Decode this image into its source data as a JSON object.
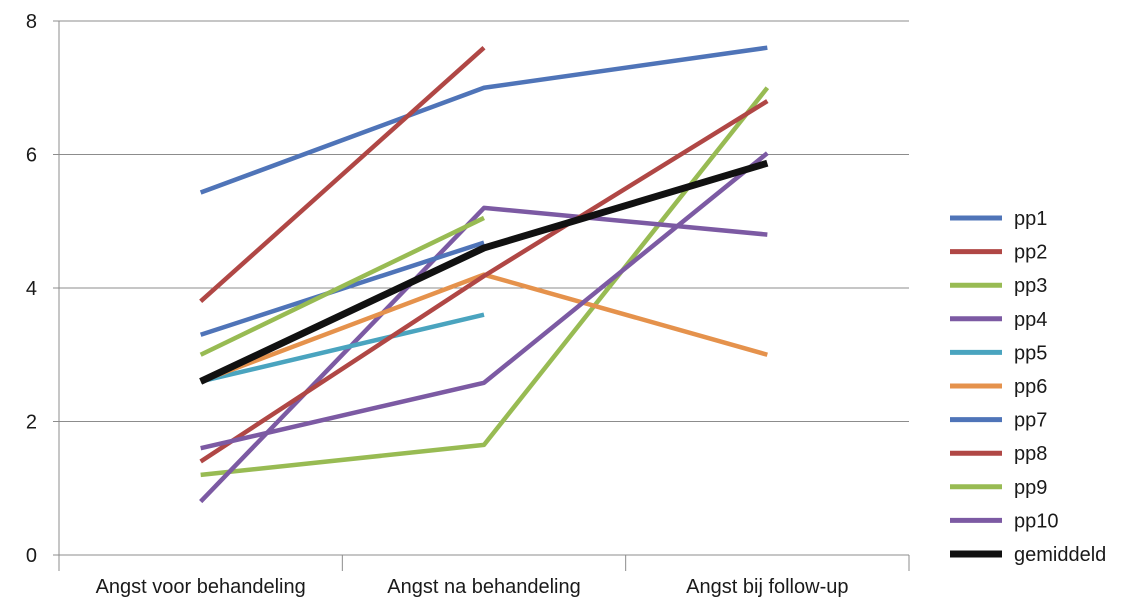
{
  "chart_data": {
    "type": "line",
    "categories": [
      "Angst voor behandeling",
      "Angst na behandeling",
      "Angst bij follow-up"
    ],
    "ylim": [
      0,
      8
    ],
    "yticks": [
      0,
      2,
      4,
      6,
      8
    ],
    "grid": true,
    "legend": "right",
    "series": [
      {
        "name": "pp1",
        "color": "#4f74b8",
        "values": [
          5.43,
          7.0,
          7.6
        ]
      },
      {
        "name": "pp2",
        "color": "#b04745",
        "values": [
          3.8,
          7.6,
          null
        ]
      },
      {
        "name": "pp3",
        "color": "#98bb53",
        "values": [
          1.2,
          1.65,
          7.0
        ]
      },
      {
        "name": "pp4",
        "color": "#7c5aa3",
        "values": [
          0.8,
          5.2,
          4.8
        ]
      },
      {
        "name": "pp5",
        "color": "#4aa4bf",
        "values": [
          2.6,
          3.6,
          null
        ]
      },
      {
        "name": "pp6",
        "color": "#e5924c",
        "values": [
          2.6,
          4.2,
          3.0
        ]
      },
      {
        "name": "pp7",
        "color": "#4f74b8",
        "values": [
          3.3,
          4.68,
          null
        ]
      },
      {
        "name": "pp8",
        "color": "#b04745",
        "values": [
          1.4,
          4.18,
          6.8
        ]
      },
      {
        "name": "pp9",
        "color": "#98bb53",
        "values": [
          3.0,
          5.05,
          null
        ]
      },
      {
        "name": "pp10",
        "color": "#7c5aa3",
        "values": [
          1.6,
          2.58,
          6.02
        ]
      },
      {
        "name": "gemiddeld",
        "color": "#111111",
        "values": [
          2.6,
          4.6,
          5.87
        ]
      }
    ]
  }
}
